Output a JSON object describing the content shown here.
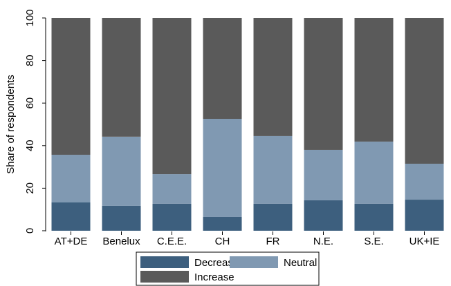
{
  "chart_data": {
    "type": "stacked_bar",
    "y_label": "Share of respondents",
    "categories": [
      "AT+DE",
      "Benelux",
      "C.E.E.",
      "CH",
      "FR",
      "N.E.",
      "S.E.",
      "UK+IE"
    ],
    "series": [
      {
        "name": "Decrease",
        "color": "#3d5f7e",
        "values": [
          13.3,
          11.7,
          12.7,
          6.5,
          12.7,
          14.3,
          12.7,
          14.6
        ]
      },
      {
        "name": "Neutral",
        "color": "#8099b2",
        "values": [
          22.4,
          32.5,
          13.9,
          46.1,
          31.8,
          23.7,
          29.2,
          16.9
        ]
      },
      {
        "name": "Increase",
        "color": "#5a5a5a",
        "values": [
          64.3,
          55.8,
          73.4,
          47.4,
          55.5,
          62.0,
          58.1,
          68.5
        ]
      }
    ],
    "ylim": [
      0,
      100
    ],
    "yticks": [
      0,
      20,
      40,
      60,
      80,
      100
    ]
  }
}
